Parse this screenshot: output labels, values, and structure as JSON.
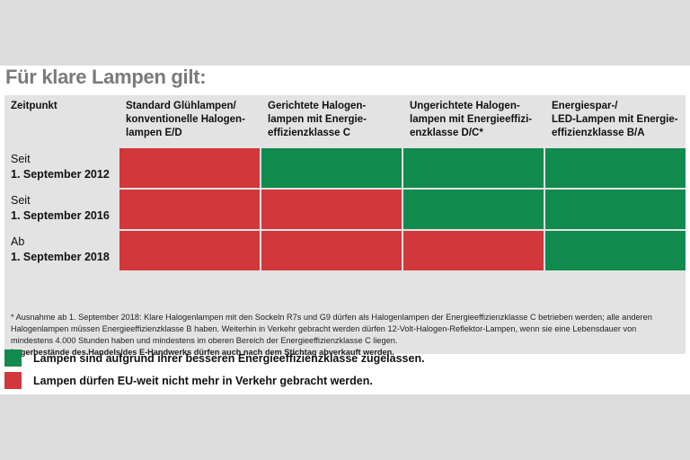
{
  "title": "Für klare Lampen gilt:",
  "colors": {
    "allowed": "#118a4e",
    "banned": "#d2373b",
    "grid_bg": "#e3e3e3",
    "title": "#7a7a7a"
  },
  "chart_data": {
    "type": "table",
    "header_first": "Zeitpunkt",
    "columns": [
      {
        "lines": [
          "Standard Glühlampen/",
          "konventionelle Halogen-",
          "lampen E/D"
        ]
      },
      {
        "lines": [
          "Gerichtete Halogen-",
          "lampen mit Energie-",
          "effizienzklasse C"
        ]
      },
      {
        "lines": [
          "Ungerichtete Halogen-",
          "lampen mit Energieeffizi-",
          "enzklasse D/C*"
        ]
      },
      {
        "lines": [
          "Energiespar-/",
          "LED-Lampen mit Energie-",
          "effizienzklasse B/A"
        ]
      }
    ],
    "rows": [
      {
        "prefix": "Seit",
        "date": "1. September 2012",
        "status": [
          "banned",
          "allowed",
          "allowed",
          "allowed"
        ]
      },
      {
        "prefix": "Seit",
        "date": "1. September 2016",
        "status": [
          "banned",
          "banned",
          "allowed",
          "allowed"
        ]
      },
      {
        "prefix": "Ab",
        "date": "1. September 2018",
        "status": [
          "banned",
          "banned",
          "banned",
          "allowed"
        ]
      }
    ]
  },
  "footnote": {
    "text": "* Ausnahme ab 1. September 2018: Klare Halogenlampen mit den Sockeln R7s und G9 dürfen als Halogenlampen der Energieeffizienzklasse C betrieben werden; alle anderen Halogenlampen müssen Energieeffizienzklasse B haben. Weiterhin in Verkehr gebracht werden dürfen 12-Volt-Halogen-Reflektor-Lampen, wenn sie eine Lebensdauer von mindestens 4.000 Stunden haben und mindestens im oberen Bereich der Energieeffizienzklasse C liegen.",
    "bold": "Lagerbestände des Handels/des E-Handwerks dürfen auch nach dem Stichtag abverkauft werden."
  },
  "legend": [
    {
      "status": "allowed",
      "label": "Lampen sind aufgrund ihrer besseren Energieeffizienzklasse zugelassen."
    },
    {
      "status": "banned",
      "label": "Lampen dürfen EU-weit nicht mehr in Verkehr gebracht werden."
    }
  ]
}
